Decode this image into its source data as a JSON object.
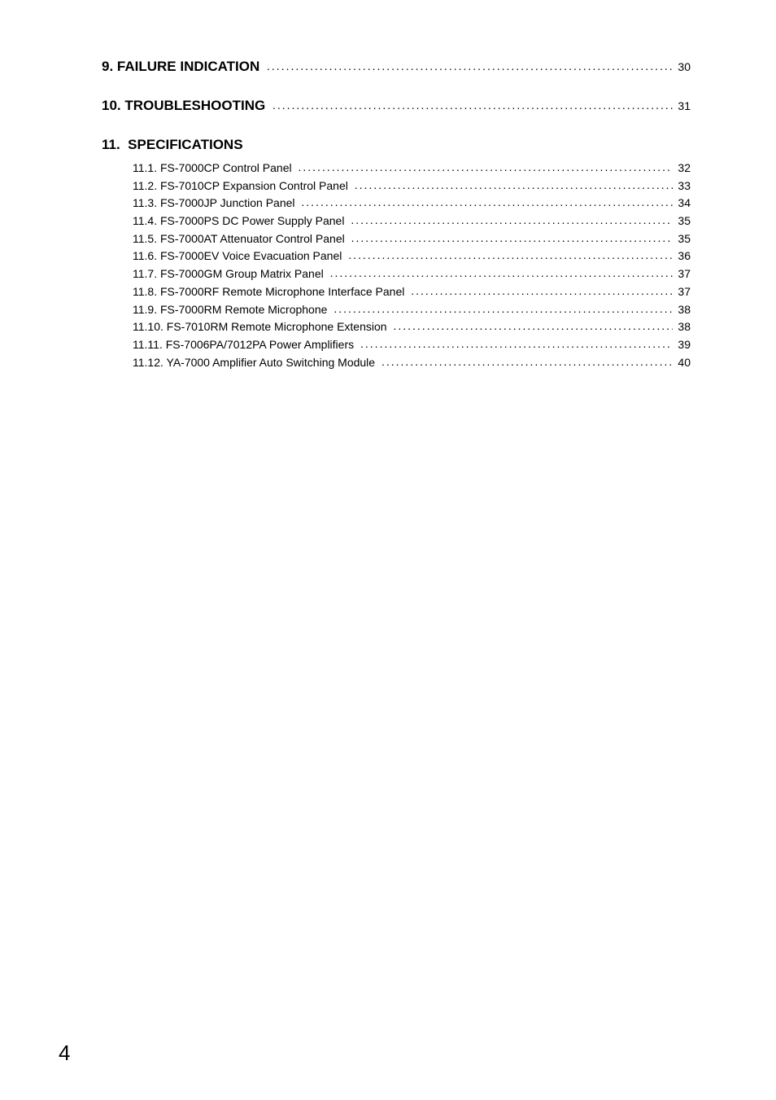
{
  "sections": [
    {
      "prefix": " 9.",
      "title": "FAILURE INDICATION",
      "page": "30",
      "type": "heading-with-page"
    },
    {
      "prefix": "10.",
      "title": "TROUBLESHOOTING",
      "page": "31",
      "type": "heading-with-page"
    },
    {
      "prefix": "11.",
      "title": "SPECIFICATIONS",
      "type": "heading-only",
      "items": [
        {
          "label": "11.1. FS-7000CP  Control Panel",
          "page": "32"
        },
        {
          "label": "11.2. FS-7010CP  Expansion Control Panel",
          "page": "33"
        },
        {
          "label": "11.3. FS-7000JP  Junction Panel",
          "page": "34"
        },
        {
          "label": "11.4. FS-7000PS  DC Power Supply Panel",
          "page": "35"
        },
        {
          "label": "11.5. FS-7000AT  Attenuator Control Panel",
          "page": "35"
        },
        {
          "label": "11.6. FS-7000EV  Voice Evacuation Panel",
          "page": "36"
        },
        {
          "label": "11.7. FS-7000GM  Group Matrix Panel",
          "page": "37"
        },
        {
          "label": "11.8. FS-7000RF  Remote Microphone Interface Panel",
          "page": "37"
        },
        {
          "label": "11.9. FS-7000RM  Remote Microphone",
          "page": "38"
        },
        {
          "label": "11.10. FS-7010RM  Remote Microphone Extension",
          "page": "38"
        },
        {
          "label": "11.11. FS-7006PA/7012PA  Power Amplifiers",
          "page": "39"
        },
        {
          "label": "11.12. YA-7000  Amplifier Auto Switching Module",
          "page": "40"
        }
      ]
    }
  ],
  "footer_page_number": "4"
}
